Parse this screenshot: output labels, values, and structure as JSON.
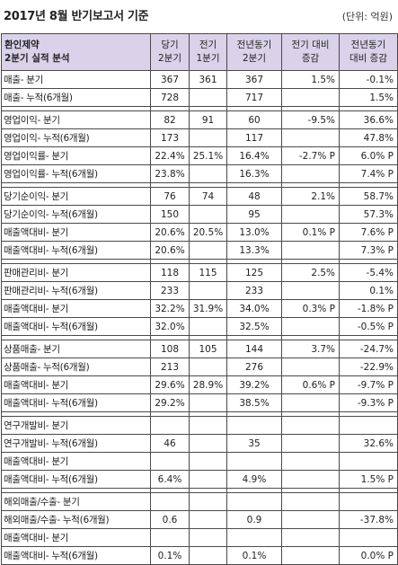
{
  "header": {
    "title": "2017년 8월 반기보고서 기준",
    "unit": "(단위: 억원)"
  },
  "table": {
    "columns": {
      "lead_line1": "환인제약",
      "lead_line2": "2분기 실적 분석",
      "c1_line1": "당기",
      "c1_line2": "2분기",
      "c2_line1": "전기",
      "c2_line2": "1분기",
      "c3_line1": "전년동기",
      "c3_line2": "2분기",
      "c4_line1": "전기 대비",
      "c4_line2": "증감",
      "c5_line1": "전년동기",
      "c5_line2": "대비 증감"
    },
    "groups": [
      [
        [
          "매출- 분기",
          "367",
          "361",
          "367",
          "1.5%",
          "-0.1%"
        ],
        [
          "매출- 누적(6개월)",
          "728",
          "",
          "717",
          "",
          "1.5%"
        ]
      ],
      [
        [
          "영업이익- 분기",
          "82",
          "91",
          "60",
          "-9.5%",
          "36.6%"
        ],
        [
          "영업이익- 누적(6개월)",
          "173",
          "",
          "117",
          "",
          "47.8%"
        ],
        [
          "영업이익률- 분기",
          "22.4%",
          "25.1%",
          "16.4%",
          "-2.7% P",
          "6.0% P"
        ],
        [
          "영업이익률- 누적(6개월)",
          "23.8%",
          "",
          "16.3%",
          "",
          "7.4% P"
        ]
      ],
      [
        [
          "당기순이익- 분기",
          "76",
          "74",
          "48",
          "2.1%",
          "58.7%"
        ],
        [
          "당기순이익- 누적(6개월)",
          "150",
          "",
          "95",
          "",
          "57.3%"
        ],
        [
          "매출액대비- 분기",
          "20.6%",
          "20.5%",
          "13.0%",
          "0.1% P",
          "7.6% P"
        ],
        [
          "매출액대비- 누적(6개월)",
          "20.6%",
          "",
          "13.3%",
          "",
          "7.3% P"
        ]
      ],
      [
        [
          "판매관리비- 분기",
          "118",
          "115",
          "125",
          "2.5%",
          "-5.4%"
        ],
        [
          "판매관리비- 누적(6개월)",
          "233",
          "",
          "233",
          "",
          "0.1%"
        ],
        [
          "매출액대비- 분기",
          "32.2%",
          "31.9%",
          "34.0%",
          "0.3% P",
          "-1.8% P"
        ],
        [
          "매출액대비- 누적(6개월)",
          "32.0%",
          "",
          "32.5%",
          "",
          "-0.5% P"
        ]
      ],
      [
        [
          "상품매출- 분기",
          "108",
          "105",
          "144",
          "3.7%",
          "-24.7%"
        ],
        [
          "상품매출- 누적(6개월)",
          "213",
          "",
          "276",
          "",
          "-22.9%"
        ],
        [
          "매출액대비- 분기",
          "29.6%",
          "28.9%",
          "39.2%",
          "0.6% P",
          "-9.7% P"
        ],
        [
          "매출액대비- 누적(6개월)",
          "29.2%",
          "",
          "38.5%",
          "",
          "-9.3% P"
        ]
      ],
      [
        [
          "연구개발비- 분기",
          "",
          "",
          "",
          "",
          ""
        ],
        [
          "연구개발비- 누적(6개월)",
          "46",
          "",
          "35",
          "",
          "32.6%"
        ],
        [
          "매출액대비- 분기",
          "",
          "",
          "",
          "",
          ""
        ],
        [
          "매출액대비- 누적(6개월)",
          "6.4%",
          "",
          "4.9%",
          "",
          "1.5% P"
        ]
      ],
      [
        [
          "해외매출/수출- 분기",
          "",
          "",
          "",
          "",
          ""
        ],
        [
          "해외매출/수출- 누적(6개월)",
          "0.6",
          "",
          "0.9",
          "",
          "-37.8%"
        ],
        [
          "매출액대비- 분기",
          "",
          "",
          "",
          "",
          ""
        ],
        [
          "매출액대비- 누적(6개월)",
          "0.1%",
          "",
          "0.1%",
          "",
          "0.0% P"
        ]
      ]
    ]
  }
}
